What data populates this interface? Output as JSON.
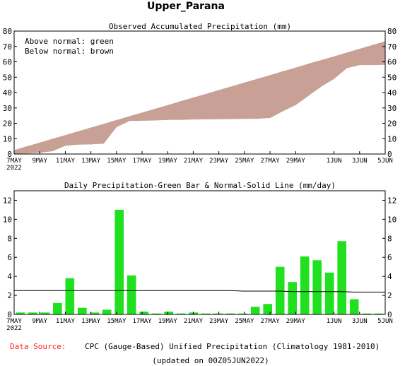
{
  "page_title": "Upper_Parana",
  "footer": {
    "source_label": "Data Source:",
    "source_text": "CPC (Gauge-Based) Unified Precipitation (Climatology 1981-2010)",
    "updated": "(updated on 00Z05JUN2022)"
  },
  "colors": {
    "above_normal": "#00c800",
    "below_normal": "#c8a096",
    "daily_bar": "#20e020",
    "normal_line": "#000000",
    "source_label": "#ff2020"
  },
  "x_axis": {
    "tick_labels": [
      "7MAY",
      "9MAY",
      "11MAY",
      "13MAY",
      "15MAY",
      "17MAY",
      "19MAY",
      "21MAY",
      "23MAY",
      "25MAY",
      "27MAY",
      "29MAY",
      "1JUN",
      "3JUN",
      "5JUN"
    ],
    "tick_days": [
      0,
      2,
      4,
      6,
      8,
      10,
      12,
      14,
      16,
      18,
      20,
      22,
      25,
      27,
      29
    ],
    "year_label": "2022"
  },
  "chart_data": [
    {
      "type": "area",
      "title": "Observed Accumulated Precipitation (mm)",
      "legend": [
        "Above normal: green",
        "Below normal: brown"
      ],
      "legend_position": "top-left",
      "x": [
        "7MAY",
        "8MAY",
        "9MAY",
        "10MAY",
        "11MAY",
        "12MAY",
        "13MAY",
        "14MAY",
        "15MAY",
        "16MAY",
        "17MAY",
        "18MAY",
        "19MAY",
        "20MAY",
        "21MAY",
        "22MAY",
        "23MAY",
        "24MAY",
        "25MAY",
        "26MAY",
        "27MAY",
        "28MAY",
        "29MAY",
        "30MAY",
        "31MAY",
        "1JUN",
        "2JUN",
        "3JUN",
        "4JUN",
        "5JUN"
      ],
      "ylim": [
        0,
        80
      ],
      "yticks": [
        0,
        10,
        20,
        30,
        40,
        50,
        60,
        70,
        80
      ],
      "series": [
        {
          "name": "Observed",
          "values": [
            0.2,
            0.5,
            0.9,
            2.0,
            5.5,
            6.2,
            6.4,
            6.9,
            17.6,
            21.6,
            21.8,
            22.0,
            22.3,
            22.4,
            22.6,
            22.7,
            22.8,
            22.9,
            23.0,
            23.1,
            23.6,
            28.0,
            32.0,
            38.0,
            44.0,
            49.0,
            56.0,
            58.0,
            58.0,
            58.2
          ]
        },
        {
          "name": "Normal",
          "values": [
            2.4,
            4.9,
            7.3,
            9.8,
            12.2,
            14.6,
            17.1,
            19.5,
            22.0,
            24.4,
            26.8,
            29.3,
            31.7,
            34.2,
            36.6,
            39.0,
            41.5,
            43.9,
            46.4,
            48.8,
            51.2,
            53.7,
            56.1,
            58.6,
            61.0,
            63.4,
            65.9,
            68.3,
            70.8,
            73.2
          ]
        }
      ]
    },
    {
      "type": "bar",
      "title": "Daily Precipitation-Green Bar & Normal-Solid Line (mm/day)",
      "x": [
        "7MAY",
        "8MAY",
        "9MAY",
        "10MAY",
        "11MAY",
        "12MAY",
        "13MAY",
        "14MAY",
        "15MAY",
        "16MAY",
        "17MAY",
        "18MAY",
        "19MAY",
        "20MAY",
        "21MAY",
        "22MAY",
        "23MAY",
        "24MAY",
        "25MAY",
        "26MAY",
        "27MAY",
        "28MAY",
        "29MAY",
        "30MAY",
        "31MAY",
        "1JUN",
        "2JUN",
        "3JUN",
        "4JUN",
        "5JUN"
      ],
      "ylim": [
        0,
        13
      ],
      "yticks": [
        0,
        2,
        4,
        6,
        8,
        10,
        12
      ],
      "series": [
        {
          "name": "Daily Precipitation",
          "values": [
            0.2,
            0.2,
            0.2,
            1.2,
            3.8,
            0.7,
            0.2,
            0.5,
            11.0,
            4.1,
            0.3,
            0.1,
            0.3,
            0.1,
            0.2,
            0.1,
            0.1,
            0.1,
            0.1,
            0.8,
            1.1,
            5.0,
            3.4,
            6.1,
            5.7,
            4.4,
            7.7,
            1.6,
            0.1,
            0.1
          ]
        },
        {
          "name": "Normal",
          "values": [
            2.5,
            2.5,
            2.5,
            2.5,
            2.5,
            2.5,
            2.5,
            2.5,
            2.5,
            2.5,
            2.5,
            2.5,
            2.5,
            2.5,
            2.5,
            2.5,
            2.5,
            2.5,
            2.45,
            2.45,
            2.45,
            2.45,
            2.4,
            2.4,
            2.4,
            2.4,
            2.4,
            2.35,
            2.35,
            2.35
          ]
        }
      ]
    }
  ]
}
